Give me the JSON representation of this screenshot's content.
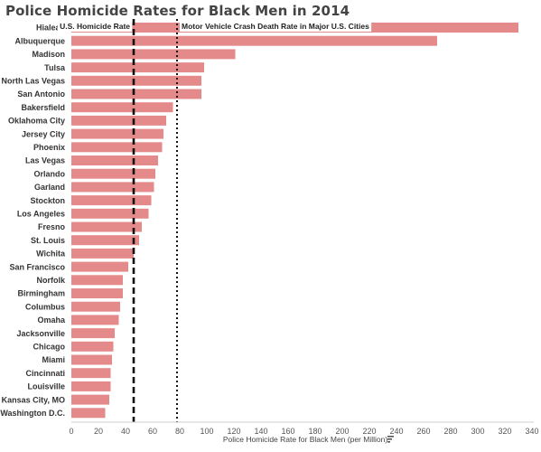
{
  "title": "Police Homicide Rates for Black Men in 2014",
  "chart_data": {
    "type": "bar",
    "orientation": "horizontal",
    "title": "Police Homicide Rates for Black Men in 2014",
    "xlabel": "Police Homicide Rate for Black Men (per Million)",
    "ylabel": "",
    "xlim": [
      0,
      340
    ],
    "xticks": [
      "0",
      "20",
      "40",
      "60",
      "80",
      "100",
      "120",
      "140",
      "160",
      "180",
      "200",
      "220",
      "240",
      "260",
      "280",
      "300",
      "320",
      "340"
    ],
    "grid": false,
    "bar_color": "#e58a8a",
    "categories": [
      "Hialeah",
      "Albuquerque",
      "Madison",
      "Tulsa",
      "North Las Vegas",
      "San Antonio",
      "Bakersfield",
      "Oklahoma City",
      "Jersey City",
      "Phoenix",
      "Las Vegas",
      "Orlando",
      "Garland",
      "Stockton",
      "Los Angeles",
      "Fresno",
      "St. Louis",
      "Wichita",
      "San Francisco",
      "Norfolk",
      "Birmingham",
      "Columbus",
      "Omaha",
      "Jacksonville",
      "Chicago",
      "Miami",
      "Cincinnati",
      "Louisville",
      "Kansas City, MO",
      "Washington D.C."
    ],
    "values": [
      330,
      270,
      121,
      98,
      96,
      96,
      75,
      70,
      68,
      67,
      64,
      62,
      61,
      59,
      57,
      52,
      50,
      46,
      42,
      38,
      38,
      36,
      35,
      32,
      31,
      30,
      29,
      29,
      28,
      25
    ],
    "reference_lines": [
      {
        "label": "U.S. Homicide Rate",
        "value": 46,
        "style": "dashed",
        "color": "#111111"
      },
      {
        "label": "Motor Vehicle Crash Death Rate in Major U.S. Cities",
        "value": 78,
        "style": "dotted",
        "color": "#111111"
      }
    ]
  }
}
